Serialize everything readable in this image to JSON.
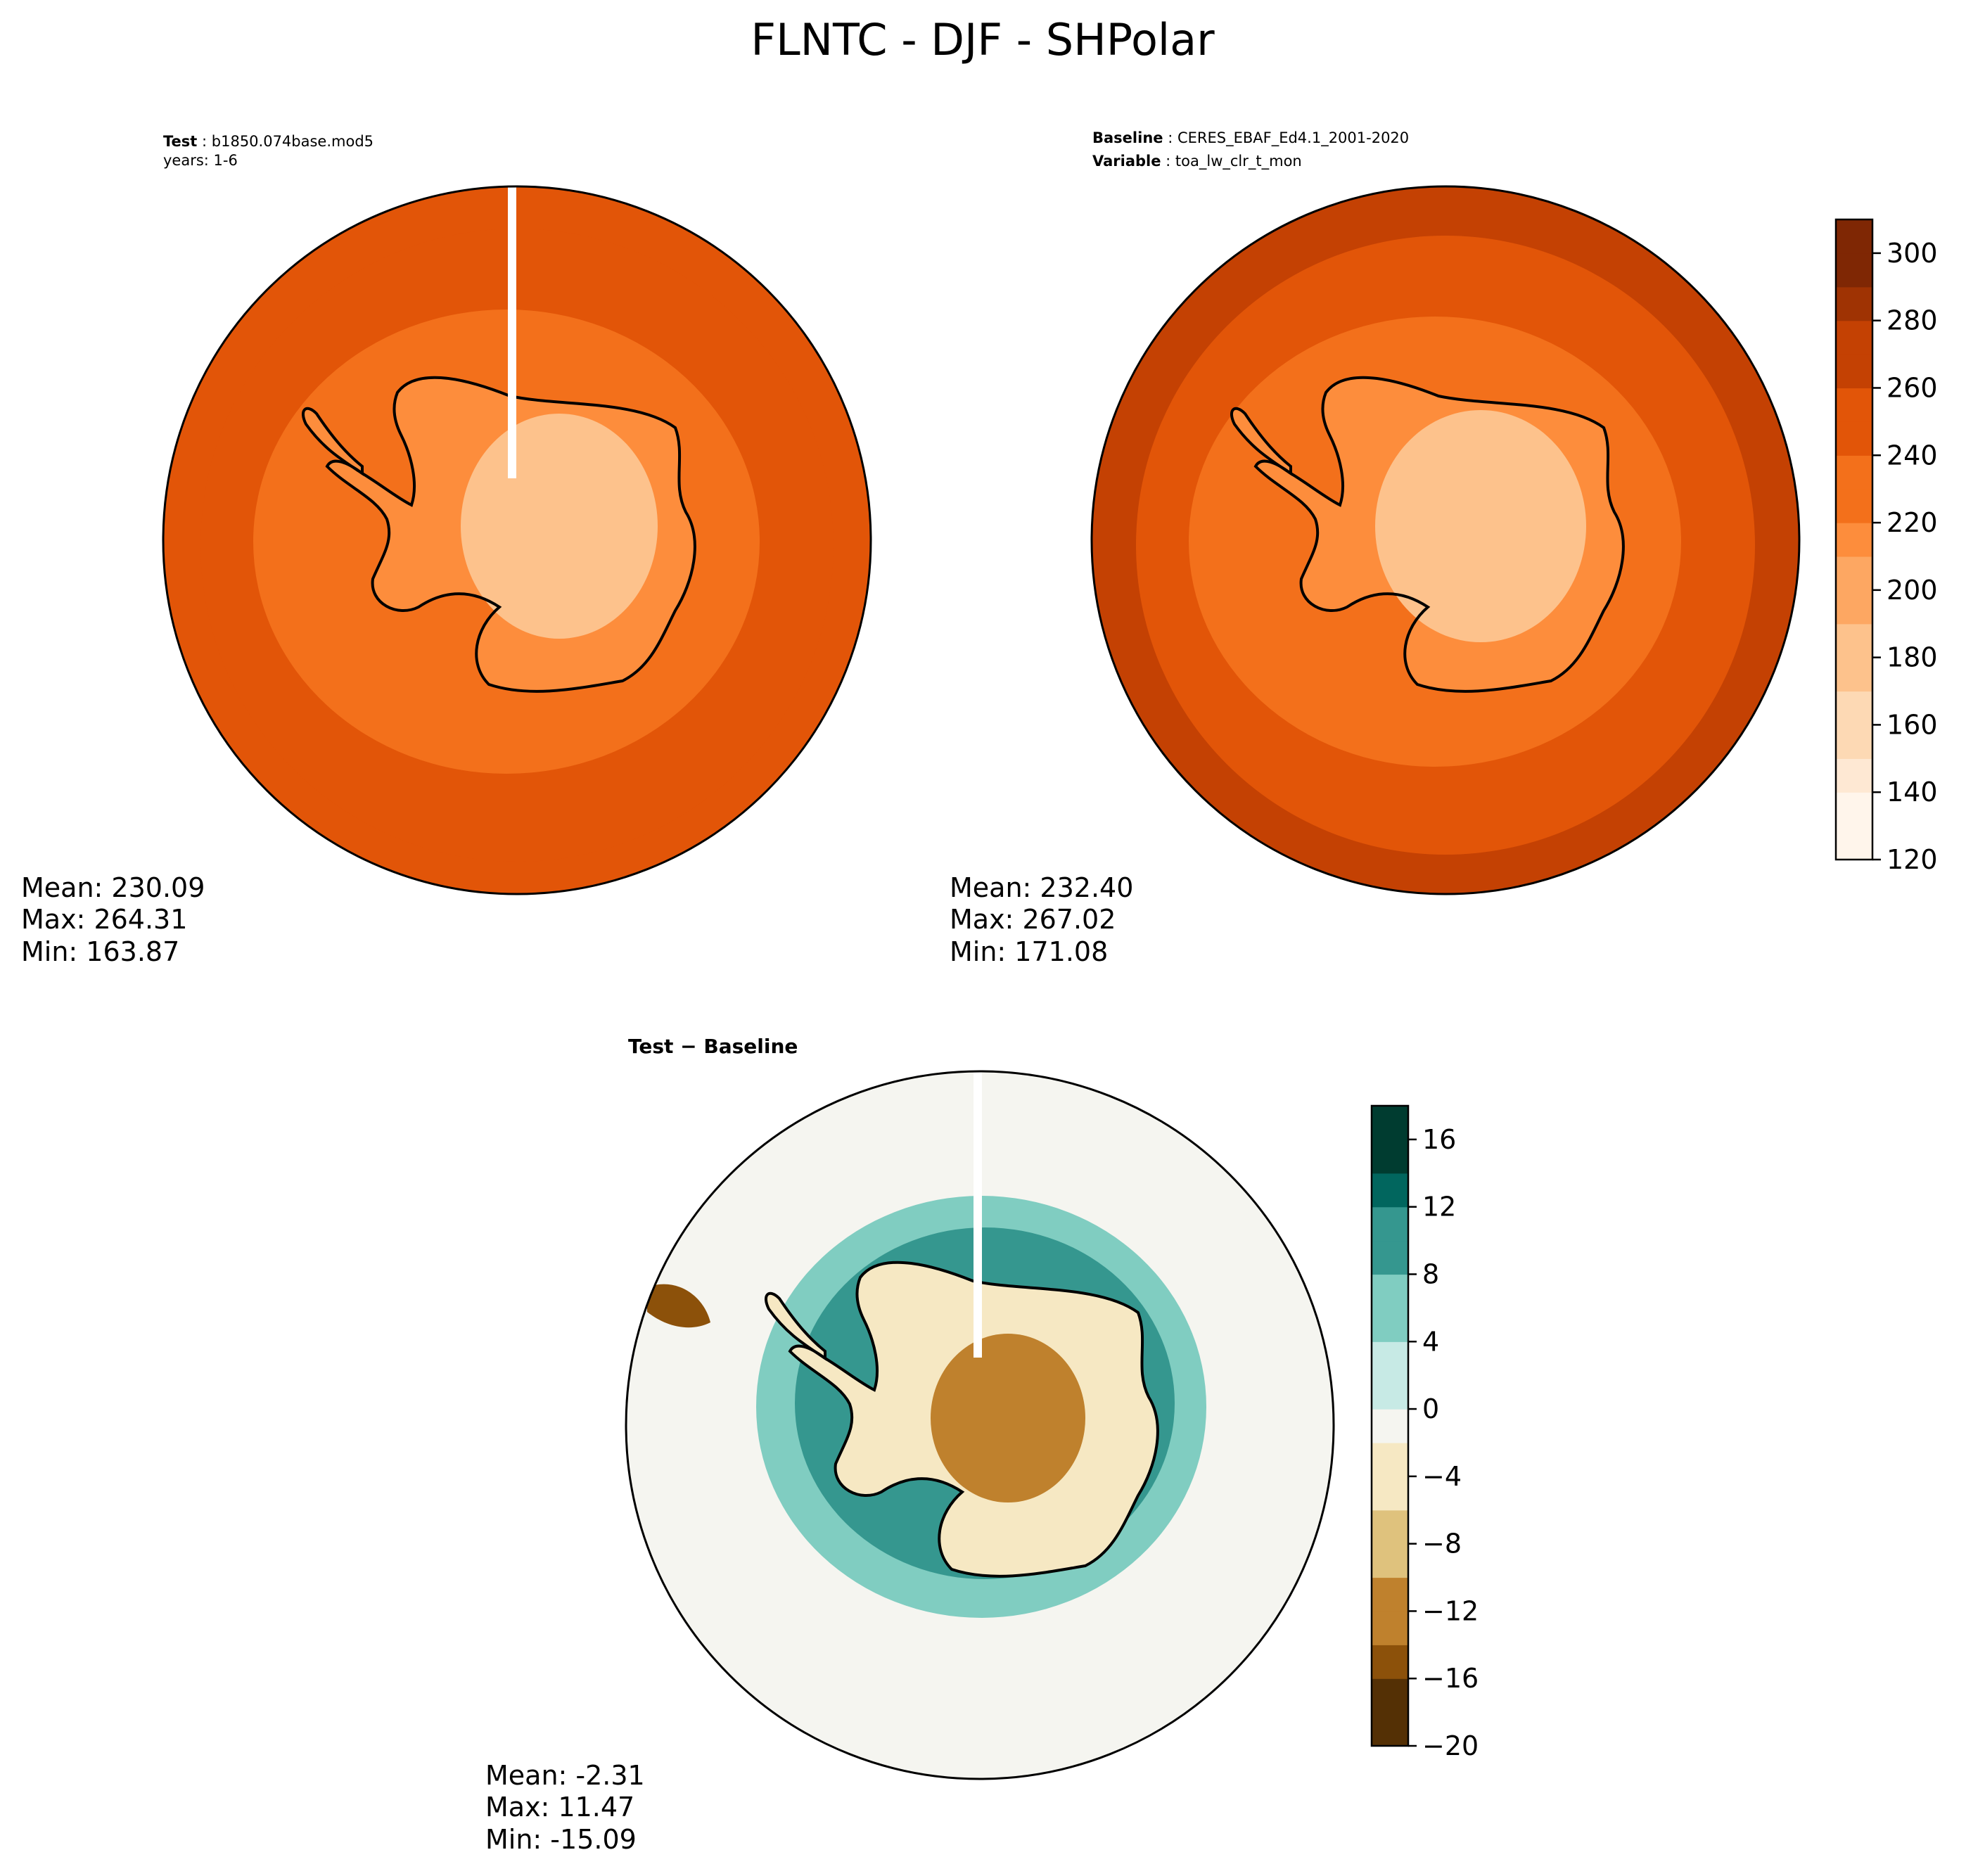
{
  "title": "FLNTC - DJF - SHPolar",
  "panels": [
    {
      "id": "test",
      "header_lines": [
        {
          "key": "Test",
          "value": "b1850.074base.mod5"
        },
        {
          "key": "",
          "value": "years: 1-6"
        }
      ],
      "stats": {
        "mean": "Mean: 230.09",
        "max": "Max: 264.31",
        "min": "Min: 163.87"
      },
      "field": {
        "ocean_outer": 258,
        "ocean_mid": 244,
        "ocean_inner": 232,
        "coast": 212,
        "interior": 172,
        "min_value": 163.87,
        "max_value": 264.31
      }
    },
    {
      "id": "baseline",
      "header_lines": [
        {
          "key": "Baseline",
          "value": "CERES_EBAF_Ed4.1_2001-2020"
        },
        {
          "key": "Variable",
          "value": "toa_lw_clr_t_mon"
        }
      ],
      "stats": {
        "mean": "Mean: 232.40",
        "max": "Max: 267.02",
        "min": "Min: 171.08"
      },
      "field": {
        "ocean_outer": 262,
        "ocean_mid": 250,
        "ocean_inner": 238,
        "coast": 218,
        "interior": 188,
        "min_value": 171.08,
        "max_value": 267.02
      }
    },
    {
      "id": "diff",
      "header_lines": [
        {
          "key": "Test − Baseline",
          "value": ""
        }
      ],
      "stats": {
        "mean": "Mean: -2.31",
        "max": "Max: 11.47",
        "min": "Min: -15.09"
      },
      "field": {
        "ocean_outer": -2,
        "ocean_ring": 6,
        "ocean_ring_inner": 9,
        "interior": -6,
        "interior_core": -10,
        "peninsula_tip": -14,
        "min_value": -15.09,
        "max_value": 11.47
      }
    }
  ],
  "colorbars": [
    {
      "id": "main-colorbar",
      "range": [
        120,
        310
      ],
      "step": 10,
      "ticks": [
        "120",
        "140",
        "160",
        "180",
        "200",
        "220",
        "240",
        "260",
        "280",
        "300"
      ],
      "colors": [
        "#fff5eb",
        "#fee8d3",
        "#fdd9b4",
        "#fdc28c",
        "#fda762",
        "#fd8d3c",
        "#f3701b",
        "#e25508",
        "#c44103",
        "#9f3303",
        "#7f2704"
      ]
    },
    {
      "id": "diff-colorbar",
      "range": [
        -20,
        18
      ],
      "step": 2,
      "ticks": [
        "−20",
        "−16",
        "−12",
        "−8",
        "−4",
        "0",
        "4",
        "8",
        "12",
        "16"
      ],
      "colors": [
        "#543005",
        "#8c510a",
        "#bf812d",
        "#dfc27d",
        "#f6e8c3",
        "#f5f5f0",
        "#c7eae5",
        "#80cdc1",
        "#35978f",
        "#01665e",
        "#003c30"
      ]
    }
  ]
}
